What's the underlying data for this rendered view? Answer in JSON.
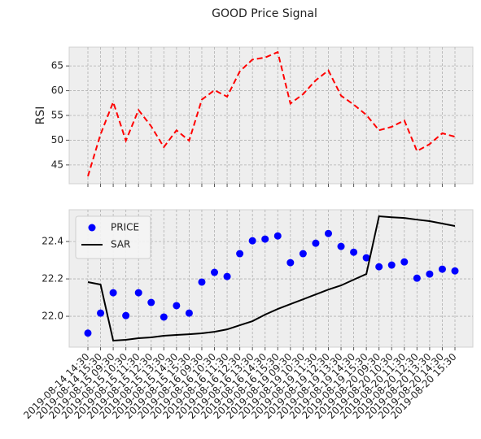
{
  "chart_data": [
    {
      "type": "line",
      "title": "GOOD Price Signal",
      "ylabel": "RSI",
      "grid": true,
      "ylim": [
        41.2,
        68.8
      ],
      "yticks": [
        45,
        50,
        55,
        60,
        65
      ],
      "series": [
        {
          "color": "#ff0000",
          "dashed": true,
          "values": [
            42.7,
            51.2,
            57.7,
            49.9,
            56.1,
            52.8,
            48.6,
            52.0,
            49.9,
            58.2,
            60.1,
            58.8,
            63.9,
            66.3,
            66.7,
            67.8,
            57.4,
            59.3,
            62.1,
            64.1,
            59.0,
            57.2,
            55.1,
            52.0,
            52.7,
            54.0,
            47.8,
            49.2,
            51.4,
            50.7
          ]
        }
      ]
    },
    {
      "type": "line",
      "grid": true,
      "legend": "upper left",
      "categories": [
        "2019-08-14 14:30",
        "2019-08-14 15:30",
        "2019-08-15 09:30",
        "2019-08-15 10:30",
        "2019-08-15 11:30",
        "2019-08-15 12:30",
        "2019-08-15 13:30",
        "2019-08-15 14:30",
        "2019-08-15 15:30",
        "2019-08-16 09:30",
        "2019-08-16 10:30",
        "2019-08-16 11:30",
        "2019-08-16 12:30",
        "2019-08-16 13:30",
        "2019-08-16 14:30",
        "2019-08-16 15:30",
        "2019-08-19 09:30",
        "2019-08-19 10:30",
        "2019-08-19 11:30",
        "2019-08-19 12:30",
        "2019-08-19 13:30",
        "2019-08-19 14:30",
        "2019-08-19 15:30",
        "2019-08-20 09:30",
        "2019-08-20 10:30",
        "2019-08-20 11:30",
        "2019-08-20 12:30",
        "2019-08-20 13:30",
        "2019-08-20 14:30",
        "2019-08-20 15:30"
      ],
      "ylim": [
        21.835,
        22.57
      ],
      "yticks": [
        {
          "value": 22,
          "label": "22.0"
        },
        22.2,
        22.4
      ],
      "series": [
        {
          "name": "PRICE",
          "color": "#0000ff",
          "marker": "o",
          "values": [
            21.91,
            22.017,
            22.126,
            22.004,
            22.126,
            22.074,
            21.996,
            22.057,
            22.017,
            22.183,
            22.235,
            22.213,
            22.335,
            22.404,
            22.413,
            22.43,
            22.287,
            22.335,
            22.391,
            22.443,
            22.374,
            22.343,
            22.313,
            22.265,
            22.274,
            22.291,
            22.204,
            22.226,
            22.252,
            22.243
          ]
        },
        {
          "name": "SAR",
          "color": "#000000",
          "values": [
            22.183,
            22.17,
            21.87,
            21.874,
            21.883,
            21.887,
            21.896,
            21.9,
            21.904,
            21.909,
            21.917,
            21.93,
            21.952,
            21.974,
            22.009,
            22.039,
            22.065,
            22.091,
            22.117,
            22.143,
            22.165,
            22.196,
            22.226,
            22.535,
            22.53,
            22.526,
            22.517,
            22.509,
            22.496,
            22.483
          ]
        }
      ]
    }
  ]
}
